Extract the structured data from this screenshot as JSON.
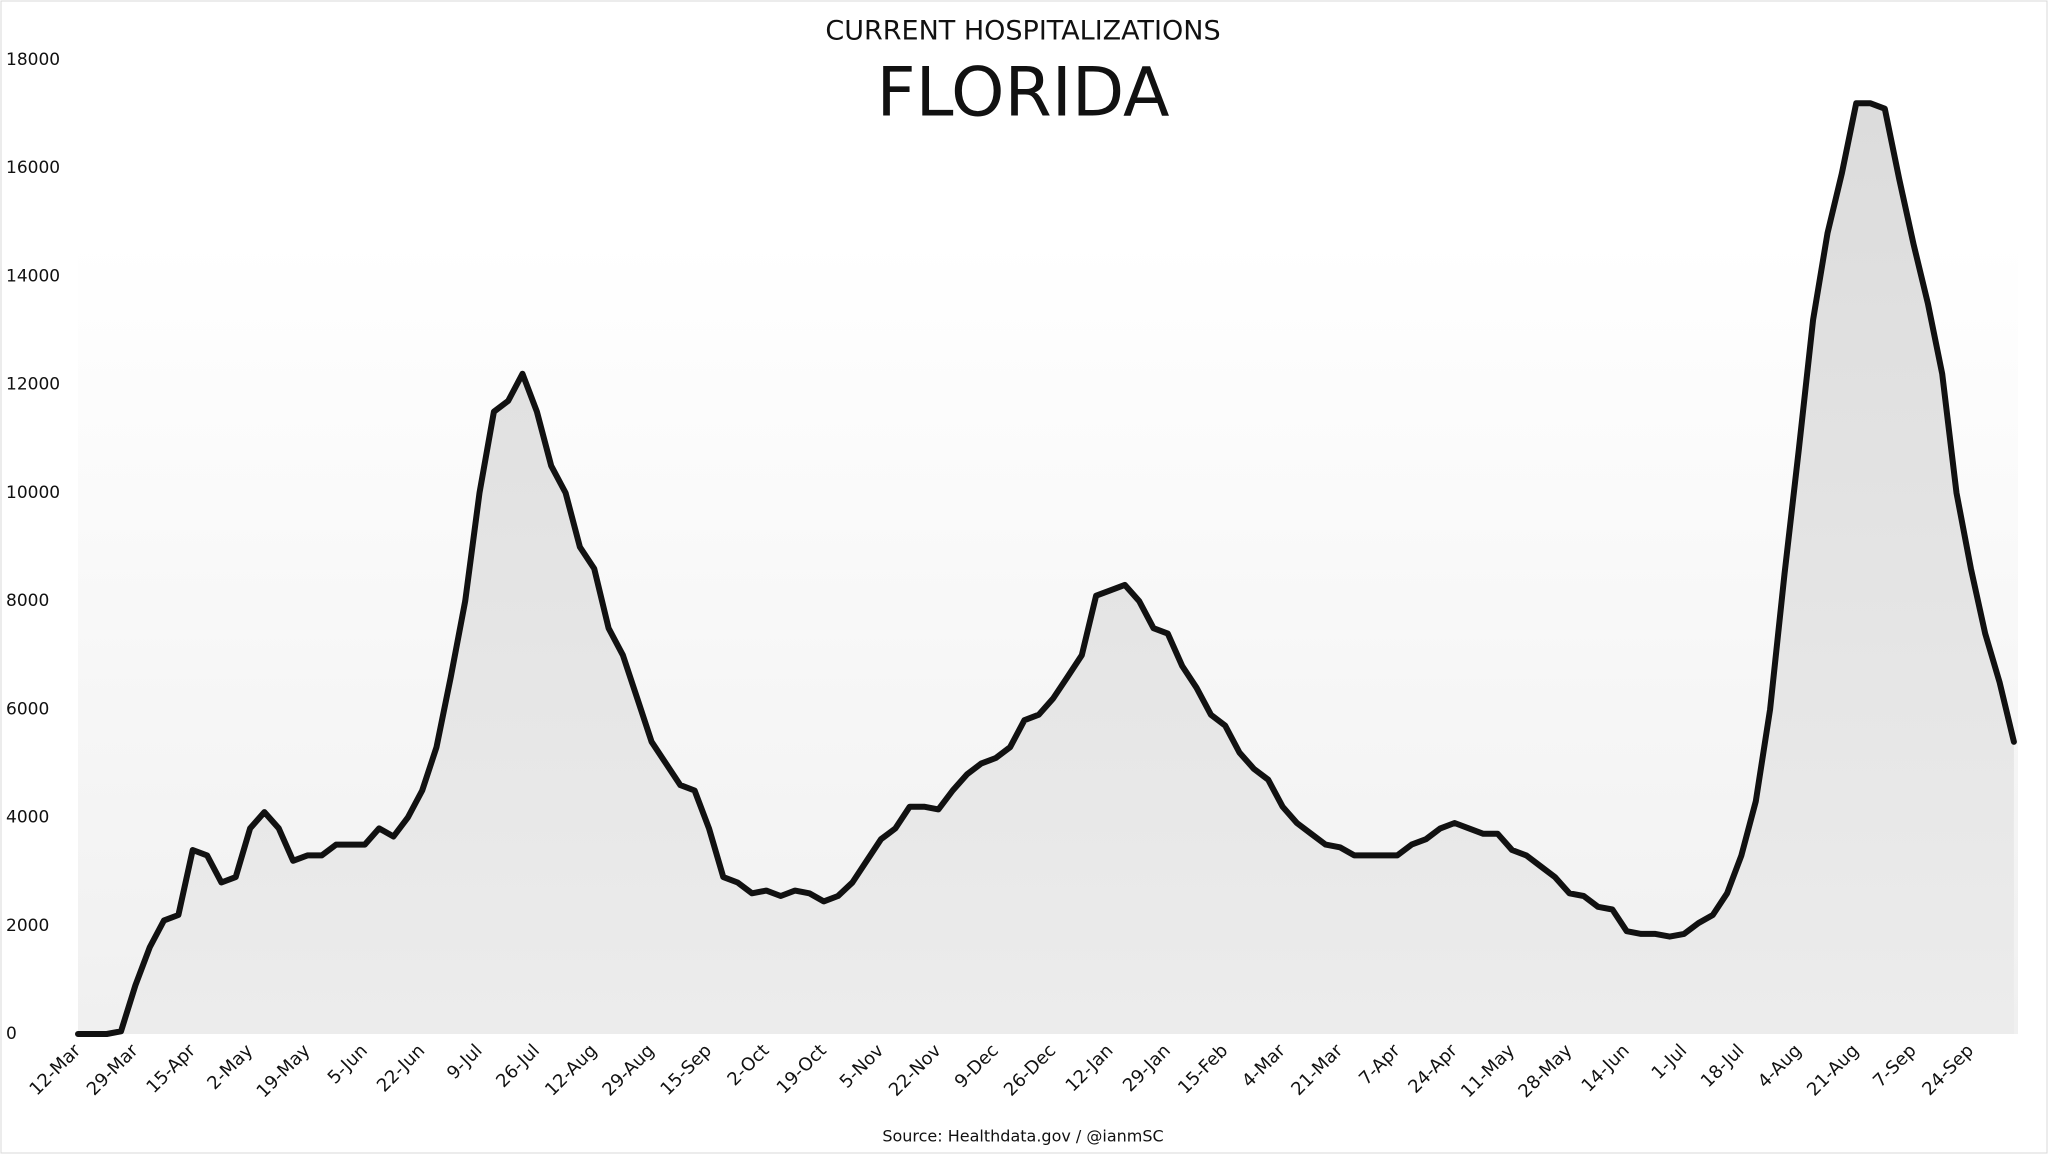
{
  "chart_data": {
    "type": "line",
    "title": "FLORIDA",
    "subtitle": "CURRENT HOSPITALIZATIONS",
    "source": "Source: Healthdata.gov / @ianmSC",
    "categories": [
      "12-Mar",
      null,
      null,
      null,
      "29-Mar",
      null,
      null,
      null,
      "15-Apr",
      null,
      null,
      null,
      "2-May",
      null,
      null,
      null,
      "19-May",
      null,
      null,
      null,
      "5-Jun",
      null,
      null,
      null,
      "22-Jun",
      null,
      null,
      null,
      "9-Jul",
      null,
      null,
      null,
      "26-Jul",
      null,
      null,
      null,
      "12-Aug",
      null,
      null,
      null,
      "29-Aug",
      null,
      null,
      null,
      "15-Sep",
      null,
      null,
      null,
      "2-Oct",
      null,
      null,
      null,
      "19-Oct",
      null,
      null,
      null,
      "5-Nov",
      null,
      null,
      null,
      "22-Nov",
      null,
      null,
      null,
      "9-Dec",
      null,
      null,
      null,
      "26-Dec",
      null,
      null,
      null,
      "12-Jan",
      null,
      null,
      null,
      "29-Jan",
      null,
      null,
      null,
      "15-Feb",
      null,
      null,
      null,
      "4-Mar",
      null,
      null,
      null,
      "21-Mar",
      null,
      null,
      null,
      "7-Apr",
      null,
      null,
      null,
      "24-Apr",
      null,
      null,
      null,
      "11-May",
      null,
      null,
      null,
      "28-May",
      null,
      null,
      null,
      "14-Jun",
      null,
      null,
      null,
      "1-Jul",
      null,
      null,
      null,
      "18-Jul",
      null,
      null,
      null,
      "4-Aug",
      null,
      null,
      null,
      "21-Aug",
      null,
      null,
      null,
      "7-Sep",
      null,
      null,
      null,
      "24-Sep",
      null,
      null,
      null
    ],
    "series": [
      {
        "name": "Current hospitalizations",
        "color": "#111111",
        "values": [
          0,
          0,
          0,
          50,
          900,
          1600,
          2100,
          2200,
          3400,
          3300,
          2800,
          2900,
          3800,
          4100,
          3800,
          3200,
          3300,
          3300,
          3500,
          3500,
          3500,
          3800,
          3650,
          4000,
          4500,
          5300,
          6600,
          8000,
          10000,
          11500,
          11700,
          12200,
          11500,
          10500,
          10000,
          9000,
          8600,
          7500,
          7000,
          6200,
          5400,
          5000,
          4600,
          4500,
          3800,
          2900,
          2800,
          2600,
          2650,
          2550,
          2650,
          2600,
          2450,
          2550,
          2800,
          3200,
          3600,
          3800,
          4200,
          4200,
          4150,
          4500,
          4800,
          5000,
          5100,
          5300,
          5800,
          5900,
          6200,
          6600,
          7000,
          8100,
          8200,
          8300,
          8000,
          7500,
          7400,
          6800,
          6400,
          5900,
          5700,
          5200,
          4900,
          4700,
          4200,
          3900,
          3700,
          3500,
          3450,
          3300,
          3300,
          3300,
          3300,
          3500,
          3600,
          3800,
          3900,
          3800,
          3700,
          3700,
          3400,
          3300,
          3100,
          2900,
          2600,
          2550,
          2350,
          2300,
          1900,
          1850,
          1850,
          1800,
          1850,
          2050,
          2200,
          2600,
          3300,
          4300,
          6000,
          8500,
          10800,
          13200,
          14800,
          15900,
          17200,
          17200,
          17100,
          15800,
          14600,
          13500,
          12200,
          10000,
          8600,
          7400,
          6500,
          5400
        ]
      }
    ],
    "ylim": [
      0,
      18000
    ],
    "yticks": [
      0,
      2000,
      4000,
      6000,
      8000,
      10000,
      12000,
      14000,
      16000,
      18000
    ],
    "grid": false
  }
}
